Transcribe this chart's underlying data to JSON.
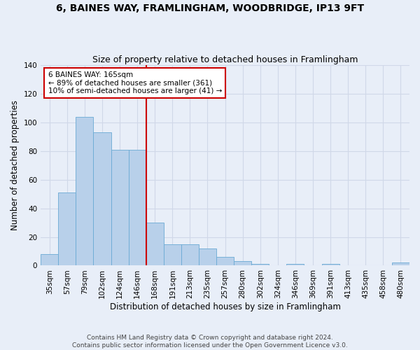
{
  "title": "6, BAINES WAY, FRAMLINGHAM, WOODBRIDGE, IP13 9FT",
  "subtitle": "Size of property relative to detached houses in Framlingham",
  "xlabel": "Distribution of detached houses by size in Framlingham",
  "ylabel": "Number of detached properties",
  "footer_line1": "Contains HM Land Registry data © Crown copyright and database right 2024.",
  "footer_line2": "Contains public sector information licensed under the Open Government Licence v3.0.",
  "bin_labels": [
    "35sqm",
    "57sqm",
    "79sqm",
    "102sqm",
    "124sqm",
    "146sqm",
    "168sqm",
    "191sqm",
    "213sqm",
    "235sqm",
    "257sqm",
    "280sqm",
    "302sqm",
    "324sqm",
    "346sqm",
    "369sqm",
    "391sqm",
    "413sqm",
    "435sqm",
    "458sqm",
    "480sqm"
  ],
  "bar_values": [
    8,
    51,
    104,
    93,
    81,
    81,
    30,
    15,
    15,
    12,
    6,
    3,
    1,
    0,
    1,
    0,
    1,
    0,
    0,
    0,
    2
  ],
  "bar_color": "#b8d0ea",
  "bar_edge_color": "#6aaad4",
  "vline_index": 6,
  "annotation_text": "6 BAINES WAY: 165sqm\n← 89% of detached houses are smaller (361)\n10% of semi-detached houses are larger (41) →",
  "vline_color": "#cc0000",
  "annotation_box_color": "#ffffff",
  "annotation_box_edge_color": "#cc0000",
  "ylim": [
    0,
    140
  ],
  "background_color": "#e8eef8",
  "grid_color": "#d0d8e8",
  "title_fontsize": 10,
  "subtitle_fontsize": 9,
  "axis_label_fontsize": 8.5,
  "tick_fontsize": 7.5,
  "annotation_fontsize": 7.5,
  "footer_fontsize": 6.5
}
